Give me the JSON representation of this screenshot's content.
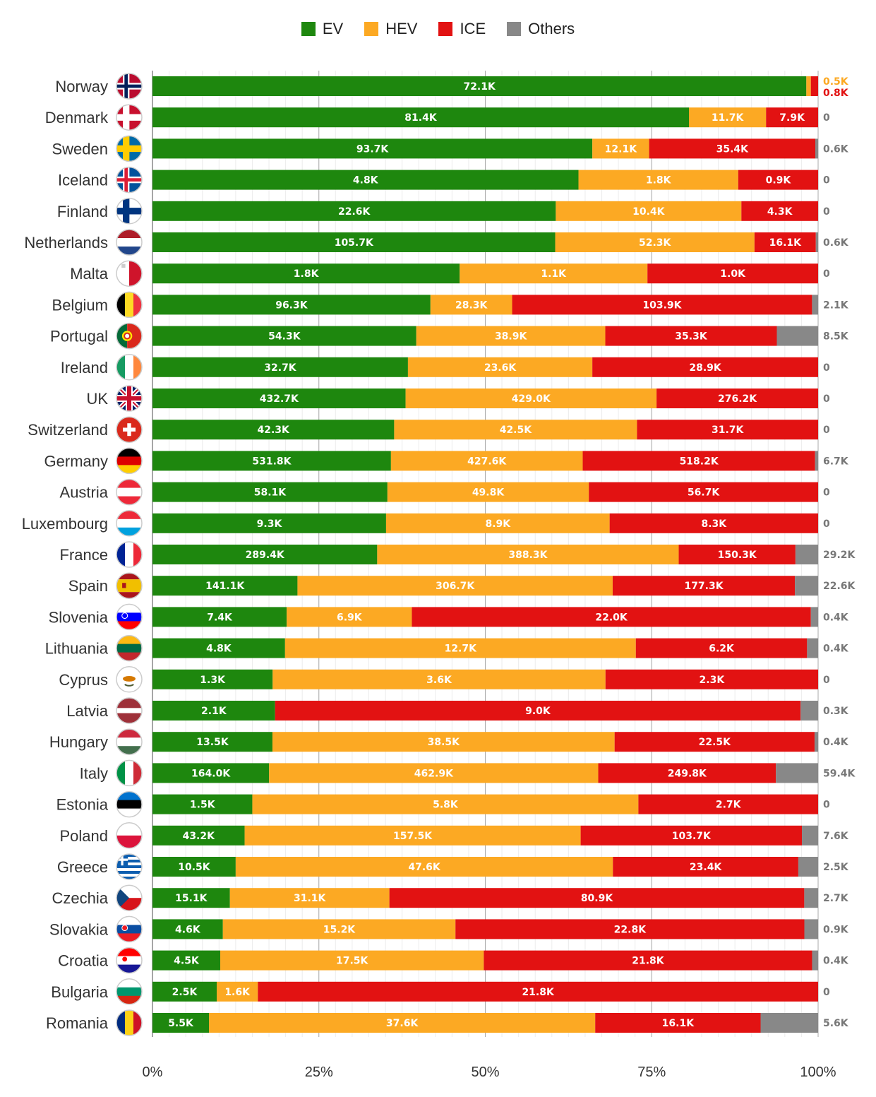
{
  "chart_data": {
    "type": "bar",
    "orientation": "horizontal",
    "stacked": "percent",
    "legend_position": "top",
    "grid": true,
    "xlim": [
      0,
      100
    ],
    "x_ticks": [
      "0%",
      "25%",
      "50%",
      "75%",
      "100%"
    ],
    "series_names": [
      "EV",
      "HEV",
      "ICE",
      "Others"
    ],
    "colors": {
      "EV": "#1e870e",
      "HEV": "#fca923",
      "ICE": "#e21212",
      "Others": "#888888"
    },
    "countries": [
      "Norway",
      "Denmark",
      "Sweden",
      "Iceland",
      "Finland",
      "Netherlands",
      "Malta",
      "Belgium",
      "Portugal",
      "Ireland",
      "UK",
      "Switzerland",
      "Germany",
      "Austria",
      "Luxembourg",
      "France",
      "Spain",
      "Slovenia",
      "Lithuania",
      "Cyprus",
      "Latvia",
      "Hungary",
      "Italy",
      "Estonia",
      "Poland",
      "Greece",
      "Czechia",
      "Slovakia",
      "Croatia",
      "Bulgaria",
      "Romania"
    ],
    "values": {
      "EV": [
        72.1,
        81.4,
        93.7,
        4.8,
        22.6,
        105.7,
        1.8,
        96.3,
        54.3,
        32.7,
        432.7,
        42.3,
        531.8,
        58.1,
        9.3,
        289.4,
        141.1,
        7.4,
        4.8,
        1.3,
        2.1,
        13.5,
        164.0,
        1.5,
        43.2,
        10.5,
        15.1,
        4.6,
        4.5,
        2.5,
        5.5
      ],
      "HEV": [
        0.5,
        11.7,
        12.1,
        1.8,
        10.4,
        52.3,
        1.1,
        28.3,
        38.9,
        23.6,
        429.0,
        42.5,
        427.6,
        49.8,
        8.9,
        388.3,
        306.7,
        6.9,
        12.7,
        3.6,
        0,
        38.5,
        462.9,
        5.8,
        157.5,
        47.6,
        31.1,
        15.2,
        17.5,
        1.6,
        37.6
      ],
      "ICE": [
        0.8,
        7.9,
        35.4,
        0.9,
        4.3,
        16.1,
        1.0,
        103.9,
        35.3,
        28.9,
        276.2,
        31.7,
        518.2,
        56.7,
        8.3,
        150.3,
        177.3,
        22.0,
        6.2,
        2.3,
        9.0,
        22.5,
        249.8,
        2.7,
        103.7,
        23.4,
        80.9,
        22.8,
        21.8,
        21.8,
        16.1
      ],
      "Others": [
        0,
        0,
        0.6,
        0,
        0,
        0.6,
        0,
        2.1,
        8.5,
        0,
        0,
        0,
        6.7,
        0,
        0,
        29.2,
        22.6,
        0.4,
        0.4,
        0,
        0.3,
        0.4,
        59.4,
        0,
        7.6,
        2.5,
        2.7,
        0.9,
        0.4,
        0,
        5.6
      ]
    },
    "bar_labels": {
      "EV": [
        "72.1K",
        "81.4K",
        "93.7K",
        "4.8K",
        "22.6K",
        "105.7K",
        "1.8K",
        "96.3K",
        "54.3K",
        "32.7K",
        "432.7K",
        "42.3K",
        "531.8K",
        "58.1K",
        "9.3K",
        "289.4K",
        "141.1K",
        "7.4K",
        "4.8K",
        "1.3K",
        "2.1K",
        "13.5K",
        "164.0K",
        "1.5K",
        "43.2K",
        "10.5K",
        "15.1K",
        "4.6K",
        "4.5K",
        "2.5K",
        "5.5K"
      ],
      "HEV": [
        "",
        "11.7K",
        "12.1K",
        "1.8K",
        "10.4K",
        "52.3K",
        "1.1K",
        "28.3K",
        "38.9K",
        "23.6K",
        "429.0K",
        "42.5K",
        "427.6K",
        "49.8K",
        "8.9K",
        "388.3K",
        "306.7K",
        "6.9K",
        "12.7K",
        "3.6K",
        "",
        "38.5K",
        "462.9K",
        "5.8K",
        "157.5K",
        "47.6K",
        "31.1K",
        "15.2K",
        "17.5K",
        "1.6K",
        "37.6K"
      ],
      "ICE": [
        "",
        "7.9K",
        "35.4K",
        "0.9K",
        "4.3K",
        "16.1K",
        "1.0K",
        "103.9K",
        "35.3K",
        "28.9K",
        "276.2K",
        "31.7K",
        "518.2K",
        "56.7K",
        "8.3K",
        "150.3K",
        "177.3K",
        "22.0K",
        "6.2K",
        "2.3K",
        "9.0K",
        "22.5K",
        "249.8K",
        "2.7K",
        "103.7K",
        "23.4K",
        "80.9K",
        "22.8K",
        "21.8K",
        "21.8K",
        "16.1K"
      ]
    },
    "right_labels": [
      "",
      "0",
      "0.6K",
      "0",
      "0",
      "0.6K",
      "0",
      "2.1K",
      "8.5K",
      "0",
      "0",
      "0",
      "6.7K",
      "0",
      "0",
      "29.2K",
      "22.6K",
      "0.4K",
      "0.4K",
      "0",
      "0.3K",
      "0.4K",
      "59.4K",
      "0",
      "7.6K",
      "2.5K",
      "2.7K",
      "0.9K",
      "0.4K",
      "0",
      "5.6K"
    ],
    "norway_side_labels": {
      "HEV": "0.5K",
      "ICE": "0.8K"
    },
    "flags": [
      {
        "kind": "nordic",
        "bg": "#ba0c2f",
        "cross": "#ffffff",
        "inner": "#00205b"
      },
      {
        "kind": "nordic",
        "bg": "#c8102e",
        "cross": "#ffffff"
      },
      {
        "kind": "nordic",
        "bg": "#006aa7",
        "cross": "#fecc00"
      },
      {
        "kind": "nordic",
        "bg": "#02529c",
        "cross": "#ffffff",
        "inner": "#dc1e35"
      },
      {
        "kind": "nordic",
        "bg": "#ffffff",
        "cross": "#003580"
      },
      {
        "kind": "hstripes",
        "colors": [
          "#ae1c28",
          "#ffffff",
          "#21468b"
        ]
      },
      {
        "kind": "malta",
        "colors": [
          "#ffffff",
          "#cf142b"
        ]
      },
      {
        "kind": "vstripes",
        "colors": [
          "#000000",
          "#fdda24",
          "#ef3340"
        ]
      },
      {
        "kind": "portugal",
        "colors": [
          "#046a38",
          "#da291c",
          "#ffe900"
        ]
      },
      {
        "kind": "vstripes",
        "colors": [
          "#169b62",
          "#ffffff",
          "#ff883e"
        ]
      },
      {
        "kind": "uk"
      },
      {
        "kind": "swiss"
      },
      {
        "kind": "hstripes",
        "colors": [
          "#000000",
          "#dd0000",
          "#ffce00"
        ]
      },
      {
        "kind": "hstripes",
        "colors": [
          "#ed2939",
          "#ffffff",
          "#ed2939"
        ]
      },
      {
        "kind": "hstripes",
        "colors": [
          "#ed2939",
          "#ffffff",
          "#00a1de"
        ]
      },
      {
        "kind": "vstripes",
        "colors": [
          "#002395",
          "#ffffff",
          "#ed2939"
        ]
      },
      {
        "kind": "spain"
      },
      {
        "kind": "hstripes",
        "colors": [
          "#ffffff",
          "#0000ff",
          "#ff0000"
        ],
        "crest": "#0000ff"
      },
      {
        "kind": "hstripes",
        "colors": [
          "#fdb913",
          "#006a44",
          "#c1272d"
        ]
      },
      {
        "kind": "cyprus"
      },
      {
        "kind": "latvia"
      },
      {
        "kind": "hstripes",
        "colors": [
          "#cd2a3e",
          "#ffffff",
          "#436f4d"
        ]
      },
      {
        "kind": "vstripes",
        "colors": [
          "#009246",
          "#ffffff",
          "#ce2b37"
        ]
      },
      {
        "kind": "hstripes",
        "colors": [
          "#0072ce",
          "#000000",
          "#ffffff"
        ]
      },
      {
        "kind": "poland"
      },
      {
        "kind": "greece"
      },
      {
        "kind": "czech"
      },
      {
        "kind": "hstripes",
        "colors": [
          "#ffffff",
          "#0b4ea2",
          "#ee1c25"
        ],
        "crest": "#ee1c25"
      },
      {
        "kind": "hstripes",
        "colors": [
          "#ff0000",
          "#ffffff",
          "#171796"
        ],
        "crest": "#ff0000"
      },
      {
        "kind": "hstripes",
        "colors": [
          "#ffffff",
          "#00966e",
          "#d62612"
        ]
      },
      {
        "kind": "vstripes",
        "colors": [
          "#002b7f",
          "#fcd116",
          "#ce1126"
        ]
      }
    ]
  }
}
